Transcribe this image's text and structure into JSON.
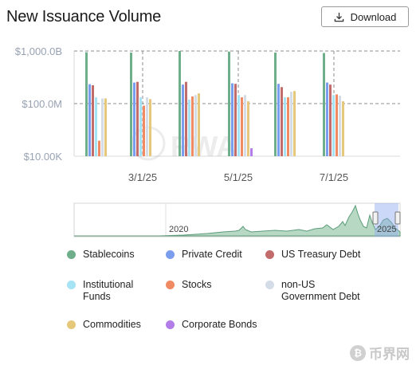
{
  "header": {
    "title": "New Issuance Volume",
    "download_label": "Download"
  },
  "colors": {
    "Stablecoins": "#6fae8a",
    "Private Credit": "#7b9ded",
    "US Treasury Debt": "#c26b6b",
    "Institutional Funds": "#a6e3f4",
    "Stocks": "#f08a62",
    "non-US Government Debt": "#d4dce8",
    "Commodities": "#e6c87a",
    "Corporate Bonds": "#b27de8"
  },
  "chart_data": {
    "type": "bar",
    "yscale": "log",
    "ylim": [
      "$10.00K",
      "$1,000.0B"
    ],
    "y_ticks": [
      "$1,000.0B",
      "$100.0M",
      "$10.00K"
    ],
    "x_ticks": [
      "3/1/25",
      "5/1/25",
      "7/1/25"
    ],
    "grid": true,
    "series": [
      {
        "name": "Stablecoins",
        "values": [
          800000000000,
          750000000000,
          1000000000000,
          900000000000,
          750000000000,
          700000000000
        ]
      },
      {
        "name": "Private Credit",
        "values": [
          3000000000,
          4000000000,
          2800000000,
          3500000000,
          3200000000,
          4000000000
        ]
      },
      {
        "name": "US Treasury Debt",
        "values": [
          2500000000,
          4500000000,
          4500000000,
          3200000000,
          1800000000,
          2800000000
        ]
      },
      {
        "name": "Institutional Funds",
        "values": [
          300000000,
          300000000,
          200000000,
          450000000,
          300000000,
          450000000
        ]
      },
      {
        "name": "Stocks",
        "values": [
          150000,
          70000000,
          350000000,
          300000000,
          300000000,
          500000000
        ]
      },
      {
        "name": "non-US Government Debt",
        "values": [
          250000000,
          300000000,
          450000000,
          450000000,
          800000000,
          400000000
        ]
      },
      {
        "name": "Commodities",
        "values": [
          250000000,
          220000000,
          600000000,
          150000000,
          900000000,
          150000000
        ]
      },
      {
        "name": "Corporate Bonds",
        "values": [
          null,
          null,
          null,
          40000,
          null,
          null
        ]
      }
    ],
    "overview": {
      "label_2020": "2020",
      "label_2025": "2025"
    }
  },
  "legend": [
    {
      "label": "Stablecoins",
      "color": "#6fae8a"
    },
    {
      "label": "Private Credit",
      "color": "#7b9ded"
    },
    {
      "label": "US Treasury Debt",
      "color": "#c26b6b"
    },
    {
      "label": "Institutional Funds",
      "color": "#a6e3f4"
    },
    {
      "label": "Stocks",
      "color": "#f08a62"
    },
    {
      "label": "non-US Government Debt",
      "color": "#d4dce8"
    },
    {
      "label": "Commodities",
      "color": "#e6c87a"
    },
    {
      "label": "Corporate Bonds",
      "color": "#b27de8"
    }
  ],
  "watermark": {
    "logo_text": "币界网"
  }
}
